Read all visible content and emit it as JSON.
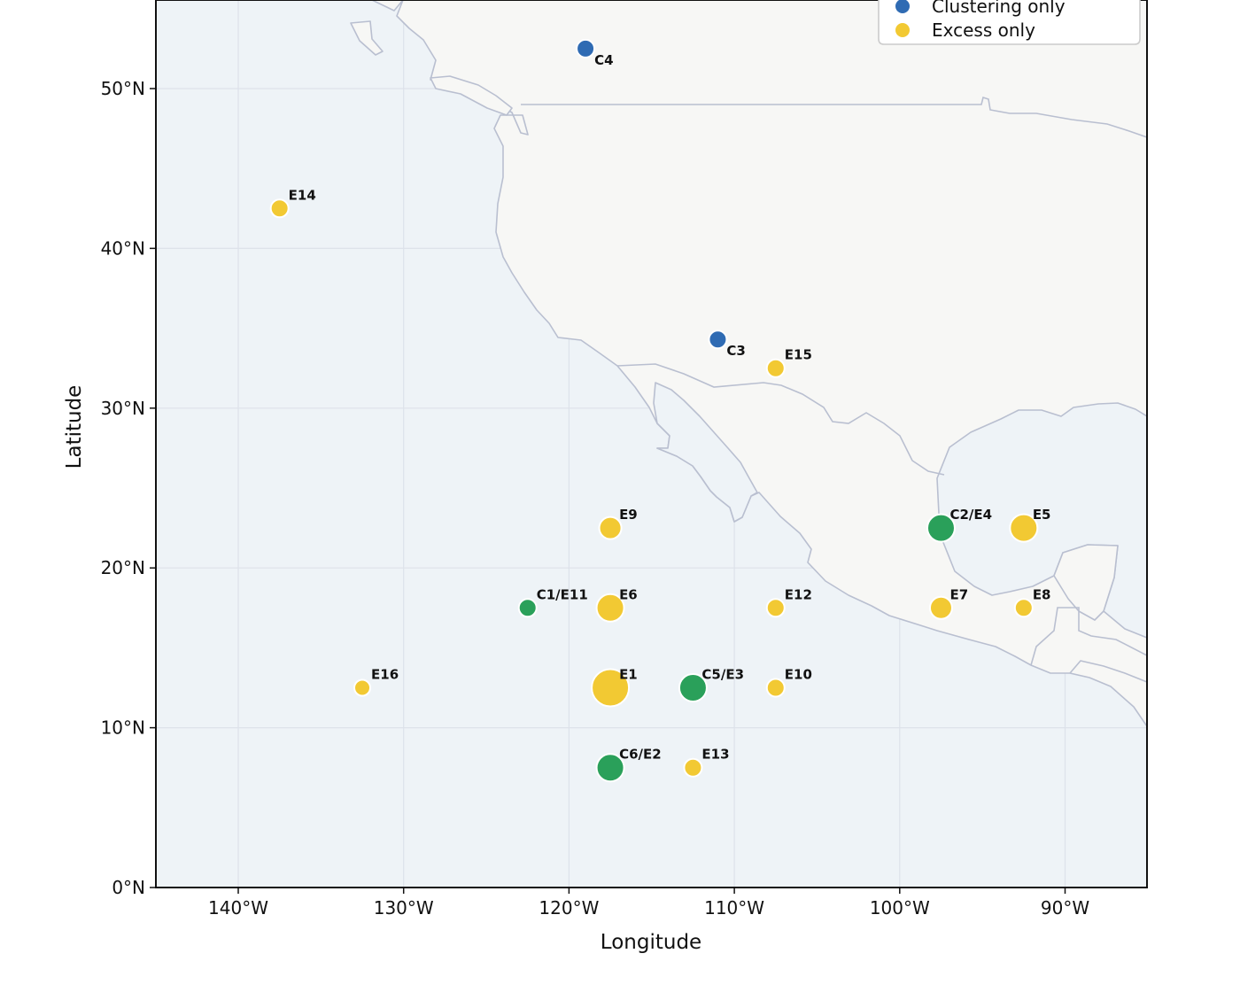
{
  "chart_data": {
    "type": "scatter",
    "xlabel": "Longitude",
    "ylabel": "Latitude",
    "xlim": [
      -145,
      -85
    ],
    "ylim": [
      0,
      55
    ],
    "grid": true,
    "legend_placement": "top-right",
    "x_ticks": [
      {
        "value": -140,
        "label": "140°W"
      },
      {
        "value": -130,
        "label": "130°W"
      },
      {
        "value": -120,
        "label": "120°W"
      },
      {
        "value": -110,
        "label": "110°W"
      },
      {
        "value": -100,
        "label": "100°W"
      },
      {
        "value": -90,
        "label": "90°W"
      }
    ],
    "y_ticks": [
      {
        "value": 0,
        "label": "0°N"
      },
      {
        "value": 10,
        "label": "10°N"
      },
      {
        "value": 20,
        "label": "20°N"
      },
      {
        "value": 30,
        "label": "30°N"
      },
      {
        "value": 40,
        "label": "40°N"
      },
      {
        "value": 50,
        "label": "50°N"
      }
    ],
    "legend": [
      {
        "label": "Clustering only",
        "color": "#2f6bb3"
      },
      {
        "label": "Excess only",
        "color": "#f2c933"
      }
    ],
    "colors": {
      "both": "#2aa05a",
      "clustering": "#2f6bb3",
      "excess": "#f2c933",
      "ocean": "#eef3f7",
      "land": "#f7f7f5",
      "border": "#b9bfd0",
      "grid": "#dde2ea"
    },
    "points": [
      {
        "label": "C4",
        "lon": -119.0,
        "lat": 52.5,
        "category": "clustering",
        "size": "small"
      },
      {
        "label": "C3",
        "lon": -111.0,
        "lat": 34.3,
        "category": "clustering",
        "size": "small"
      },
      {
        "label": "E14",
        "lon": -137.5,
        "lat": 42.5,
        "category": "excess",
        "size": "small"
      },
      {
        "label": "E15",
        "lon": -107.5,
        "lat": 32.5,
        "category": "excess",
        "size": "small"
      },
      {
        "label": "E9",
        "lon": -117.5,
        "lat": 22.5,
        "category": "excess",
        "size": "medium"
      },
      {
        "label": "C2/E4",
        "lon": -97.5,
        "lat": 22.5,
        "category": "both",
        "size": "large"
      },
      {
        "label": "E5",
        "lon": -92.5,
        "lat": 22.5,
        "category": "excess",
        "size": "large"
      },
      {
        "label": "C1/E11",
        "lon": -122.5,
        "lat": 17.5,
        "category": "both",
        "size": "small"
      },
      {
        "label": "E6",
        "lon": -117.5,
        "lat": 17.5,
        "category": "excess",
        "size": "large"
      },
      {
        "label": "E12",
        "lon": -107.5,
        "lat": 17.5,
        "category": "excess",
        "size": "small"
      },
      {
        "label": "E7",
        "lon": -97.5,
        "lat": 17.5,
        "category": "excess",
        "size": "medium"
      },
      {
        "label": "E8",
        "lon": -92.5,
        "lat": 17.5,
        "category": "excess",
        "size": "small"
      },
      {
        "label": "E16",
        "lon": -132.5,
        "lat": 12.5,
        "category": "excess",
        "size": "tiny"
      },
      {
        "label": "E1",
        "lon": -117.5,
        "lat": 12.5,
        "category": "excess",
        "size": "xlarge"
      },
      {
        "label": "C5/E3",
        "lon": -112.5,
        "lat": 12.5,
        "category": "both",
        "size": "large"
      },
      {
        "label": "E10",
        "lon": -107.5,
        "lat": 12.5,
        "category": "excess",
        "size": "small"
      },
      {
        "label": "C6/E2",
        "lon": -117.5,
        "lat": 7.5,
        "category": "both",
        "size": "large"
      },
      {
        "label": "E13",
        "lon": -112.5,
        "lat": 7.5,
        "category": "excess",
        "size": "small"
      }
    ]
  }
}
